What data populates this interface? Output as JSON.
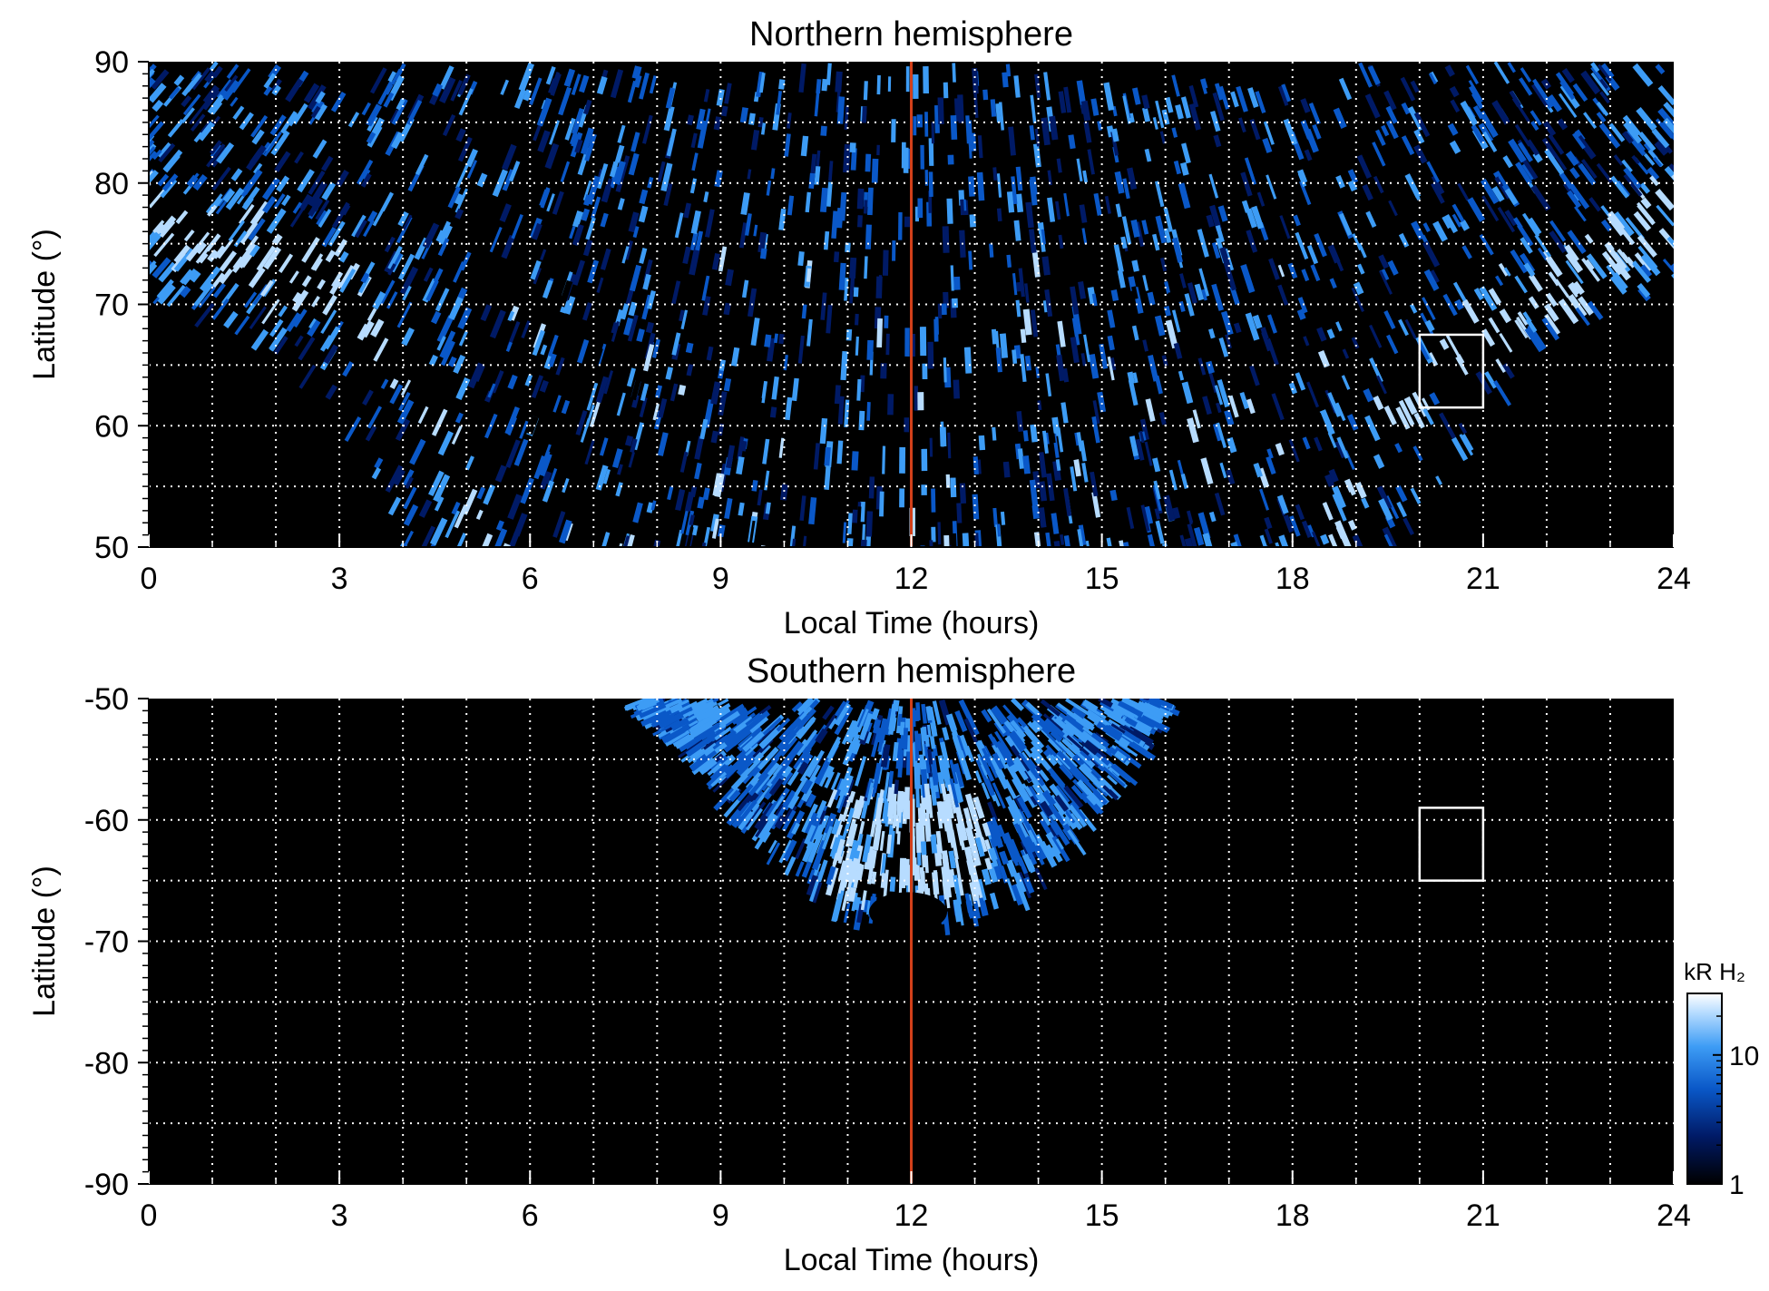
{
  "chart_data": [
    {
      "type": "heatmap",
      "title": "Northern hemisphere",
      "xlabel": "Local Time (hours)",
      "ylabel": "Latitude (°)",
      "xlim": [
        0,
        24
      ],
      "ylim": [
        50,
        90
      ],
      "xticks": [
        "0",
        "3",
        "6",
        "9",
        "12",
        "15",
        "18",
        "21",
        "24"
      ],
      "yticks": [
        "50",
        "60",
        "70",
        "80",
        "90"
      ],
      "grid": true,
      "reference_line": {
        "x": 12,
        "color": "#d2401a"
      },
      "box": {
        "x": [
          20,
          21
        ],
        "y": [
          61.5,
          67.5
        ]
      },
      "emission_region": {
        "lower_boundary": [
          {
            "lt": 0,
            "lat": 71.5
          },
          {
            "lt": 0.5,
            "lat": 71
          },
          {
            "lt": 1,
            "lat": 69.5
          },
          {
            "lt": 1.5,
            "lat": 68.5
          },
          {
            "lt": 2,
            "lat": 67.5
          },
          {
            "lt": 2.5,
            "lat": 65.5
          },
          {
            "lt": 3,
            "lat": 62.5
          },
          {
            "lt": 3.5,
            "lat": 58
          },
          {
            "lt": 4,
            "lat": 50
          },
          {
            "lt": 20,
            "lat": 50
          },
          {
            "lt": 20.5,
            "lat": 56
          },
          {
            "lt": 21,
            "lat": 62
          },
          {
            "lt": 21.5,
            "lat": 66
          },
          {
            "lt": 22,
            "lat": 68
          },
          {
            "lt": 22.5,
            "lat": 69.5
          },
          {
            "lt": 23,
            "lat": 70.5
          },
          {
            "lt": 24,
            "lat": 72
          }
        ],
        "main_oval": [
          {
            "lt": 0,
            "lat": 79
          },
          {
            "lt": 1,
            "lat": 76
          },
          {
            "lt": 2,
            "lat": 74.5
          },
          {
            "lt": 3,
            "lat": 72
          },
          {
            "lt": 4,
            "lat": 67
          },
          {
            "lt": 4.8,
            "lat": 60
          },
          {
            "lt": 5.4,
            "lat": 50
          },
          {
            "lt": 18.6,
            "lat": 50
          },
          {
            "lt": 19.2,
            "lat": 58
          },
          {
            "lt": 20,
            "lat": 64
          },
          {
            "lt": 21,
            "lat": 69
          },
          {
            "lt": 22,
            "lat": 72
          },
          {
            "lt": 23,
            "lat": 75
          },
          {
            "lt": 24,
            "lat": 78
          }
        ]
      }
    },
    {
      "type": "heatmap",
      "title": "Southern hemisphere",
      "xlabel": "Local Time (hours)",
      "ylabel": "Latitude (°)",
      "xlim": [
        0,
        24
      ],
      "ylim": [
        -90,
        -50
      ],
      "xticks": [
        "0",
        "3",
        "6",
        "9",
        "12",
        "15",
        "18",
        "21",
        "24"
      ],
      "yticks": [
        "-90",
        "-80",
        "-70",
        "-60",
        "-50"
      ],
      "grid": true,
      "reference_line": {
        "x": 12,
        "color": "#d2401a"
      },
      "box": {
        "x": [
          20,
          21
        ],
        "y": [
          -65,
          -59
        ]
      },
      "emission_region": {
        "lower_boundary": [
          {
            "lt": 7.9,
            "lat": -50
          },
          {
            "lt": 8.5,
            "lat": -53
          },
          {
            "lt": 9,
            "lat": -56
          },
          {
            "lt": 9.5,
            "lat": -59.5
          },
          {
            "lt": 10,
            "lat": -62.5
          },
          {
            "lt": 10.5,
            "lat": -65
          },
          {
            "lt": 11,
            "lat": -67
          },
          {
            "lt": 11.4,
            "lat": -67.5
          },
          {
            "lt": 11.8,
            "lat": -66
          },
          {
            "lt": 12.3,
            "lat": -66.5
          },
          {
            "lt": 12.6,
            "lat": -68
          },
          {
            "lt": 13,
            "lat": -67.5
          },
          {
            "lt": 13.5,
            "lat": -66
          },
          {
            "lt": 14,
            "lat": -64
          },
          {
            "lt": 14.5,
            "lat": -61
          },
          {
            "lt": 15,
            "lat": -57.5
          },
          {
            "lt": 15.5,
            "lat": -53.5
          },
          {
            "lt": 15.8,
            "lat": -50
          }
        ],
        "bright_core": {
          "lt": [
            10.8,
            13.2
          ],
          "lat": [
            -57,
            -66
          ]
        }
      }
    }
  ],
  "colorbar": {
    "label": "kR H₂",
    "scale": "log",
    "range": [
      1,
      30
    ],
    "ticks": [
      "1",
      "10"
    ],
    "colors": [
      "#000000",
      "#001a66",
      "#0a58c8",
      "#3d9cf5",
      "#b7dcff",
      "#ffffff"
    ]
  }
}
